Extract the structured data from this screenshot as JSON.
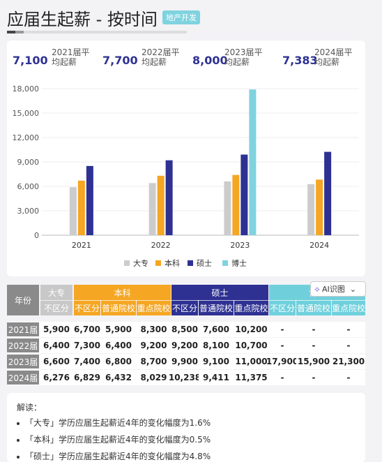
{
  "header": {
    "title": "应届生起薪 - 按时间",
    "tag": "地产开发"
  },
  "stats": [
    {
      "value": "7,100",
      "label": "2021届平均起薪"
    },
    {
      "value": "7,700",
      "label": "2022届平均起薪"
    },
    {
      "value": "8,000",
      "label": "2023届平均起薪"
    },
    {
      "value": "7,383",
      "label": "2024届平均起薪"
    }
  ],
  "chart_data": {
    "type": "bar",
    "categories": [
      "2021",
      "2022",
      "2023",
      "2024"
    ],
    "series": [
      {
        "name": "大专",
        "color": "#cccccc",
        "values": [
          5900,
          6400,
          6600,
          6276
        ]
      },
      {
        "name": "本科",
        "color": "#f5a623",
        "values": [
          6700,
          7300,
          7400,
          6829
        ]
      },
      {
        "name": "硕士",
        "color": "#2e3192",
        "values": [
          8500,
          9200,
          9900,
          10238
        ]
      },
      {
        "name": "博士",
        "color": "#7fd3df",
        "values": [
          null,
          null,
          17900,
          null
        ]
      }
    ],
    "yticks": [
      "0",
      "3,000",
      "6,000",
      "9,000",
      "12,000",
      "15,000",
      "18,000"
    ],
    "ylim": [
      0,
      18000
    ],
    "legend_position": "bottom"
  },
  "table": {
    "year_header": "年份",
    "groups": [
      {
        "name": "大专",
        "subs": [
          "不区分"
        ]
      },
      {
        "name": "本科",
        "subs": [
          "不区分",
          "普通院校",
          "重点院校"
        ]
      },
      {
        "name": "硕士",
        "subs": [
          "不区分",
          "普通院校",
          "重点院校"
        ]
      },
      {
        "name": "博士",
        "subs": [
          "不区分",
          "普通院校",
          "重点院校"
        ]
      }
    ],
    "rows": [
      {
        "year": "2021届",
        "cells": [
          "5,900",
          "6,700",
          "5,900",
          "8,300",
          "8,500",
          "7,600",
          "10,200",
          "-",
          "-",
          "-"
        ]
      },
      {
        "year": "2022届",
        "cells": [
          "6,400",
          "7,300",
          "6,400",
          "9,200",
          "9,200",
          "8,100",
          "10,700",
          "-",
          "-",
          "-"
        ]
      },
      {
        "year": "2023届",
        "cells": [
          "6,600",
          "7,400",
          "6,800",
          "8,700",
          "9,900",
          "9,100",
          "11,000",
          "17,900",
          "15,900",
          "21,300"
        ]
      },
      {
        "year": "2024届",
        "cells": [
          "6,276",
          "6,829",
          "6,432",
          "8,029",
          "10,238",
          "9,411",
          "11,375",
          "-",
          "-",
          "-"
        ]
      }
    ]
  },
  "ai_button": {
    "label": "AI识图",
    "caret": "⌄"
  },
  "analysis": {
    "heading": "解读：",
    "items": [
      "「大专」学历应届生起薪近4年的变化幅度为1.6%",
      "「本科」学历应届生起薪近4年的变化幅度为0.5%",
      "「硕士」学历应届生起薪近4年的变化幅度为4.8%"
    ]
  }
}
